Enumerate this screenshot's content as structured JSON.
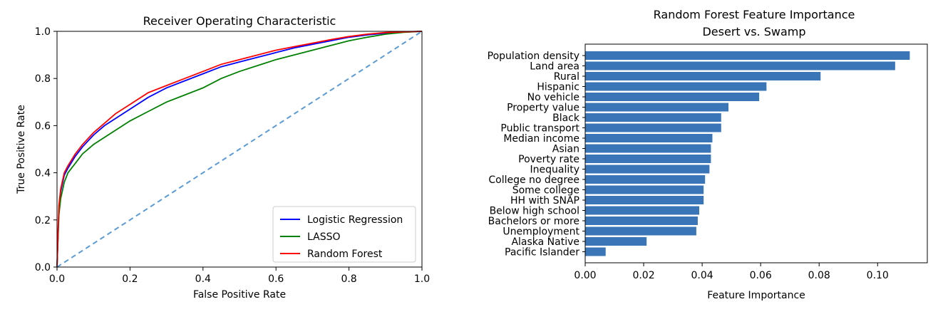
{
  "chart_data": [
    {
      "type": "line",
      "title": "Receiver Operating Characteristic",
      "xlabel": "False Positive Rate",
      "ylabel": "True Positive Rate",
      "xlim": [
        0,
        1
      ],
      "ylim": [
        0,
        1
      ],
      "xticks": [
        "0.0",
        "0.2",
        "0.4",
        "0.6",
        "0.8",
        "1.0"
      ],
      "yticks": [
        "0.0",
        "0.2",
        "0.4",
        "0.6",
        "0.8",
        "1.0"
      ],
      "grid": false,
      "legend": "bottom-right",
      "series": [
        {
          "name": "Logistic Regression",
          "color": "#0000ff",
          "x": [
            0,
            0.005,
            0.01,
            0.02,
            0.03,
            0.05,
            0.07,
            0.1,
            0.13,
            0.16,
            0.2,
            0.25,
            0.3,
            0.35,
            0.4,
            0.45,
            0.5,
            0.55,
            0.6,
            0.65,
            0.7,
            0.75,
            0.8,
            0.85,
            0.9,
            0.95,
            1.0
          ],
          "y": [
            0,
            0.24,
            0.32,
            0.39,
            0.42,
            0.47,
            0.51,
            0.56,
            0.6,
            0.63,
            0.67,
            0.72,
            0.76,
            0.79,
            0.82,
            0.85,
            0.87,
            0.89,
            0.91,
            0.93,
            0.945,
            0.96,
            0.975,
            0.985,
            0.992,
            0.997,
            1.0
          ]
        },
        {
          "name": "LASSO",
          "color": "#008000",
          "x": [
            0,
            0.005,
            0.01,
            0.02,
            0.03,
            0.05,
            0.07,
            0.1,
            0.13,
            0.16,
            0.2,
            0.25,
            0.3,
            0.35,
            0.4,
            0.45,
            0.5,
            0.55,
            0.6,
            0.65,
            0.7,
            0.75,
            0.8,
            0.85,
            0.9,
            0.95,
            1.0
          ],
          "y": [
            0,
            0.22,
            0.29,
            0.36,
            0.4,
            0.44,
            0.48,
            0.52,
            0.55,
            0.58,
            0.62,
            0.66,
            0.7,
            0.73,
            0.76,
            0.8,
            0.83,
            0.855,
            0.88,
            0.9,
            0.92,
            0.94,
            0.96,
            0.975,
            0.988,
            0.996,
            1.0
          ]
        },
        {
          "name": "Random Forest",
          "color": "#ff0000",
          "x": [
            0,
            0.005,
            0.01,
            0.02,
            0.03,
            0.05,
            0.07,
            0.1,
            0.13,
            0.16,
            0.2,
            0.25,
            0.3,
            0.35,
            0.4,
            0.45,
            0.5,
            0.55,
            0.6,
            0.65,
            0.7,
            0.75,
            0.8,
            0.85,
            0.9,
            0.95,
            1.0
          ],
          "y": [
            0,
            0.26,
            0.33,
            0.4,
            0.43,
            0.48,
            0.52,
            0.57,
            0.61,
            0.65,
            0.69,
            0.74,
            0.77,
            0.8,
            0.83,
            0.86,
            0.88,
            0.9,
            0.92,
            0.935,
            0.95,
            0.965,
            0.978,
            0.988,
            0.995,
            0.998,
            1.0
          ]
        },
        {
          "name": "",
          "color": "#5b9bd5",
          "dashed": true,
          "x": [
            0,
            1
          ],
          "y": [
            0,
            1
          ]
        }
      ]
    },
    {
      "type": "bar",
      "orientation": "horizontal",
      "title": "Random Forest Feature Importance",
      "subtitle": "Desert vs. Swamp",
      "xlabel": "Feature Importance",
      "ylabel": "",
      "xlim": [
        0,
        0.117
      ],
      "xticks": [
        "0.00",
        "0.02",
        "0.04",
        "0.06",
        "0.08",
        "0.10"
      ],
      "grid": false,
      "color": "#3a75b8",
      "categories": [
        "Population density",
        "Land area",
        "Rural",
        "Hispanic",
        "No vehicle",
        "Property value",
        "Black",
        "Public transport",
        "Median income",
        "Asian",
        "Poverty rate",
        "Inequality",
        "College no degree",
        "Some college",
        "HH with SNAP",
        "Below high school",
        "Bachelors or more",
        "Unemployment",
        "Alaska Native",
        "Pacific Islander"
      ],
      "values": [
        0.111,
        0.106,
        0.0805,
        0.062,
        0.0595,
        0.049,
        0.0465,
        0.0465,
        0.0435,
        0.043,
        0.043,
        0.0425,
        0.041,
        0.0405,
        0.0405,
        0.039,
        0.0385,
        0.038,
        0.021,
        0.007
      ]
    }
  ]
}
